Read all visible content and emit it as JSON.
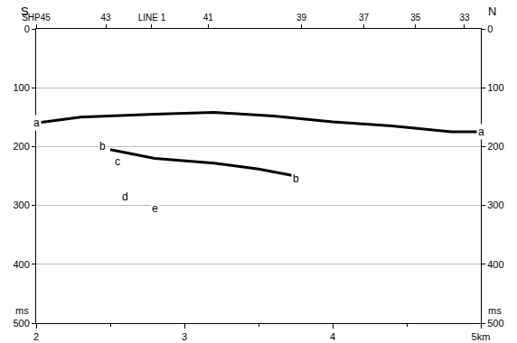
{
  "chart_data": {
    "type": "line",
    "color": "#000000",
    "labels": {
      "left": "S",
      "right": "N",
      "y_unit": "ms"
    },
    "xlim": [
      2,
      5
    ],
    "xticks": [
      2,
      3,
      4,
      {
        "value": 5,
        "label": "5km"
      }
    ],
    "top_ticks": [
      {
        "value": 2.0,
        "label": "SHP45"
      },
      {
        "value": 2.47,
        "label": "43"
      },
      {
        "value": 2.78,
        "label": "LINE 1"
      },
      {
        "value": 3.16,
        "label": "41"
      },
      {
        "value": 3.79,
        "label": "39"
      },
      {
        "value": 4.21,
        "label": "37"
      },
      {
        "value": 4.56,
        "label": "35"
      },
      {
        "value": 4.89,
        "label": "33"
      }
    ],
    "ylim": [
      500,
      0
    ],
    "yticks": [
      0,
      100,
      200,
      300,
      400,
      500
    ],
    "series": [
      {
        "x": [
          2.0,
          2.3,
          2.8,
          3.2,
          3.6,
          4.0,
          4.4,
          4.8,
          5.0
        ],
        "values": [
          160,
          150,
          145,
          142,
          148,
          158,
          165,
          175,
          175
        ]
      },
      {
        "x": [
          2.5,
          2.8,
          3.2,
          3.5,
          3.75
        ],
        "values": [
          205,
          220,
          228,
          238,
          250
        ]
      }
    ],
    "annotations": [
      {
        "text": "a",
        "x": 2.0,
        "y": 160
      },
      {
        "text": "a",
        "x": 5.0,
        "y": 175
      },
      {
        "text": "b",
        "x": 2.45,
        "y": 200
      },
      {
        "text": "c",
        "x": 2.55,
        "y": 225
      },
      {
        "text": "d",
        "x": 2.6,
        "y": 285
      },
      {
        "text": "e",
        "x": 2.8,
        "y": 305
      },
      {
        "text": "b",
        "x": 3.75,
        "y": 255
      }
    ]
  }
}
